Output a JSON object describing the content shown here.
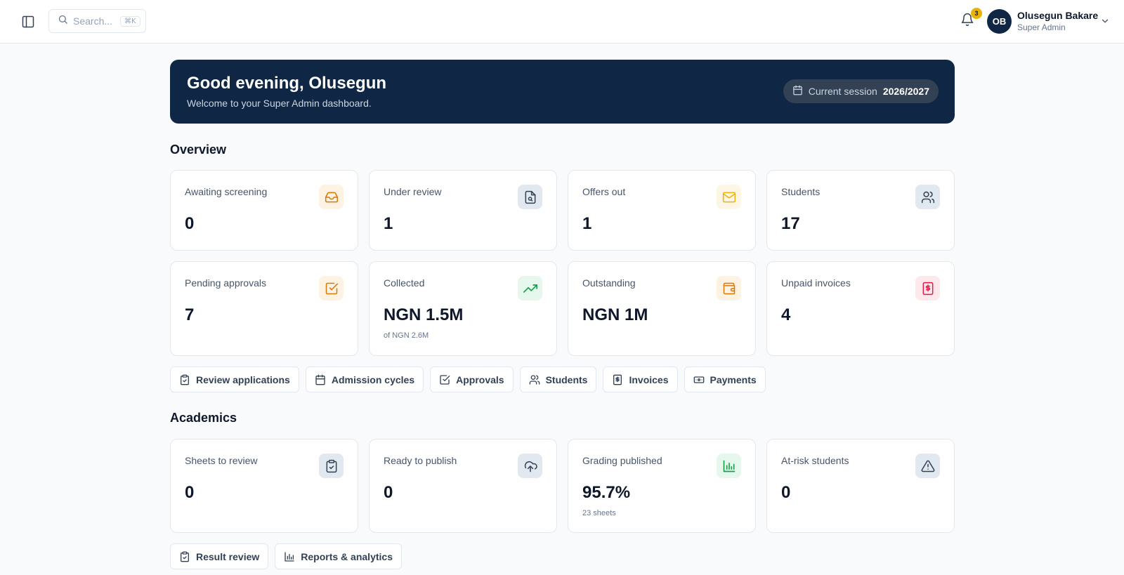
{
  "header": {
    "search_placeholder": "Search...",
    "search_shortcut": "⌘K",
    "notification_count": "3",
    "user": {
      "initials": "OB",
      "name": "Olusegun Bakare",
      "role": "Super Admin"
    }
  },
  "banner": {
    "greeting": "Good evening, Olusegun",
    "subtitle": "Welcome to your Super Admin dashboard.",
    "session_label": "Current session",
    "session_value": "2026/2027"
  },
  "overview": {
    "title": "Overview",
    "cards": [
      {
        "label": "Awaiting screening",
        "value": "0",
        "sub": "",
        "icon": "inbox-icon",
        "icon_color": "#d97706",
        "icon_bg": "#fef3e2"
      },
      {
        "label": "Under review",
        "value": "1",
        "sub": "",
        "icon": "file-search-icon",
        "icon_color": "#334155",
        "icon_bg": "#e2e8f0"
      },
      {
        "label": "Offers out",
        "value": "1",
        "sub": "",
        "icon": "mail-icon",
        "icon_color": "#eab308",
        "icon_bg": "#fef6e4"
      },
      {
        "label": "Students",
        "value": "17",
        "sub": "",
        "icon": "users-icon",
        "icon_color": "#334155",
        "icon_bg": "#e2e8f0"
      },
      {
        "label": "Pending approvals",
        "value": "7",
        "sub": "",
        "icon": "check-square-icon",
        "icon_color": "#d97706",
        "icon_bg": "#fef3e2"
      },
      {
        "label": "Collected",
        "value": "NGN 1.5M",
        "sub": "of NGN 2.6M",
        "icon": "trending-up-icon",
        "icon_color": "#16a34a",
        "icon_bg": "#e6f7ee"
      },
      {
        "label": "Outstanding",
        "value": "NGN 1M",
        "sub": "",
        "icon": "wallet-icon",
        "icon_color": "#d97706",
        "icon_bg": "#fef3e2"
      },
      {
        "label": "Unpaid invoices",
        "value": "4",
        "sub": "",
        "icon": "receipt-icon",
        "icon_color": "#e11d48",
        "icon_bg": "#fde8ec"
      }
    ],
    "actions": [
      {
        "label": "Review applications",
        "icon": "clipboard-check-icon"
      },
      {
        "label": "Admission cycles",
        "icon": "calendar-icon"
      },
      {
        "label": "Approvals",
        "icon": "check-square-icon"
      },
      {
        "label": "Students",
        "icon": "users-icon"
      },
      {
        "label": "Invoices",
        "icon": "receipt-icon"
      },
      {
        "label": "Payments",
        "icon": "banknote-icon"
      }
    ]
  },
  "academics": {
    "title": "Academics",
    "cards": [
      {
        "label": "Sheets to review",
        "value": "0",
        "sub": "",
        "icon": "clipboard-check-icon",
        "icon_color": "#334155",
        "icon_bg": "#e2e8f0"
      },
      {
        "label": "Ready to publish",
        "value": "0",
        "sub": "",
        "icon": "cloud-upload-icon",
        "icon_color": "#334155",
        "icon_bg": "#e2e8f0"
      },
      {
        "label": "Grading published",
        "value": "95.7%",
        "sub": "23 sheets",
        "icon": "bar-chart-icon",
        "icon_color": "#16a34a",
        "icon_bg": "#e6f7ee"
      },
      {
        "label": "At-risk students",
        "value": "0",
        "sub": "",
        "icon": "alert-triangle-icon",
        "icon_color": "#334155",
        "icon_bg": "#e2e8f0"
      }
    ],
    "actions": [
      {
        "label": "Result review",
        "icon": "clipboard-check-icon"
      },
      {
        "label": "Reports & analytics",
        "icon": "bar-chart-icon"
      }
    ]
  }
}
